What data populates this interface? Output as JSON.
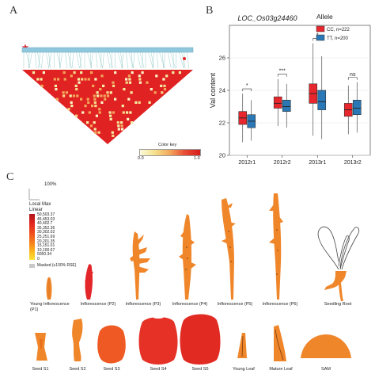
{
  "panels": {
    "a": {
      "letter": "A",
      "color_key_label": "Color key",
      "color_key_min": "0.0",
      "color_key_max": "1.0"
    },
    "b": {
      "letter": "B"
    },
    "c": {
      "letter": "C",
      "scale_pct": "100%",
      "legend_title_1": "Local Max",
      "legend_title_2": "Linear",
      "legend_values": [
        "50,503.37",
        "45,453.03",
        "40,402.7",
        "35,352.36",
        "30,302.02",
        "25,251.69",
        "20,201.35",
        "15,151.01",
        "10,100.67",
        "5050.34",
        "0"
      ],
      "masked_label": "Masked (≥100% RSE)",
      "organs_row1": [
        {
          "name": "Young Inflorescence",
          "sub": "(P1)"
        },
        {
          "name": "Inflorescence (P2)",
          "sub": ""
        },
        {
          "name": "Inflorescence (P3)",
          "sub": ""
        },
        {
          "name": "Inflorescence (P4)",
          "sub": ""
        },
        {
          "name": "Inflorescence (P5)",
          "sub": ""
        },
        {
          "name": "Inflorescence (P6)",
          "sub": ""
        },
        {
          "name": "Seedling Root",
          "sub": ""
        }
      ],
      "organs_row2": [
        "Seed S1",
        "Seed S2",
        "Seed S3",
        "Seed S4",
        "Seed S5",
        "Young Leaf",
        "Mature Leaf",
        "SAM"
      ]
    }
  },
  "chart_data": {
    "type": "boxplot",
    "title": "LOC_Os03g24460",
    "ylabel": "Val content",
    "ylim": [
      20,
      28
    ],
    "yticks": [
      20,
      22,
      24,
      26
    ],
    "categories": [
      "2012r1",
      "2012r2",
      "2013r1",
      "2013r2"
    ],
    "legend_title": "Allele",
    "legend_position": "top-right",
    "significance": [
      "*",
      "***",
      "*",
      "ns"
    ],
    "series": [
      {
        "name": "CC, n=222",
        "color": "#e8262d",
        "boxes": [
          {
            "whisker_low": 20.8,
            "q1": 21.9,
            "median": 22.3,
            "q3": 22.7,
            "whisker_high": 23.8
          },
          {
            "whisker_low": 21.8,
            "q1": 22.9,
            "median": 23.2,
            "q3": 23.6,
            "whisker_high": 24.7
          },
          {
            "whisker_low": 21.2,
            "q1": 23.2,
            "median": 23.8,
            "q3": 24.4,
            "whisker_high": 26.9
          },
          {
            "whisker_low": 21.3,
            "q1": 22.4,
            "median": 22.8,
            "q3": 23.2,
            "whisker_high": 24.3
          }
        ]
      },
      {
        "name": "TT, n=200",
        "color": "#2a78b6",
        "boxes": [
          {
            "whisker_low": 20.9,
            "q1": 21.7,
            "median": 22.1,
            "q3": 22.5,
            "whisker_high": 23.4
          },
          {
            "whisker_low": 21.7,
            "q1": 22.7,
            "median": 23.0,
            "q3": 23.4,
            "whisker_high": 24.4
          },
          {
            "whisker_low": 21.0,
            "q1": 22.8,
            "median": 23.3,
            "q3": 24.0,
            "whisker_high": 26.1
          },
          {
            "whisker_low": 21.4,
            "q1": 22.5,
            "median": 22.9,
            "q3": 23.4,
            "whisker_high": 24.5
          }
        ]
      }
    ]
  },
  "colors": {
    "ld_main": "#e02222",
    "ld_light": "#f3eea6",
    "ld_mid": "#f2a65a",
    "chrom_bar": "#8fc7dc",
    "organ_orange": "#f0862a",
    "organ_red": "#e3262a"
  }
}
